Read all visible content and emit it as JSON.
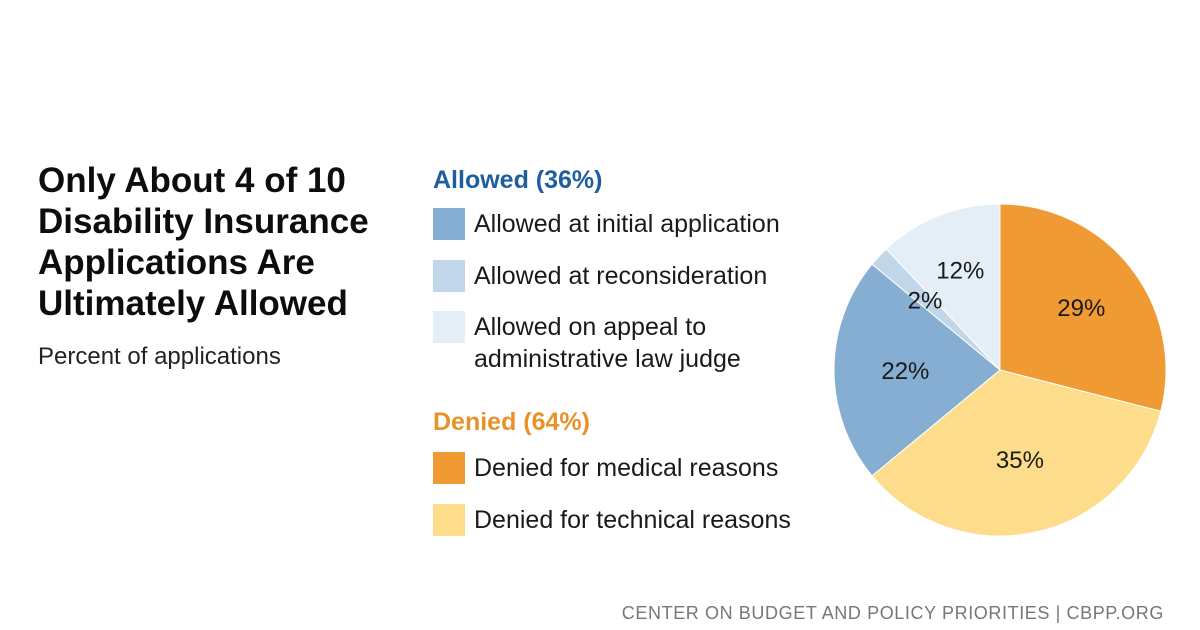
{
  "title_lines": [
    "Only About 4 of 10",
    "Disability Insurance",
    "Applications Are",
    "Ultimately Allowed"
  ],
  "subtitle": "Percent of applications",
  "legend": {
    "allowed_heading": "Allowed (36%)",
    "denied_heading": "Denied (64%)",
    "allowed_color": "#1f5e9e",
    "denied_color": "#e8922b",
    "items": [
      {
        "label_lines": [
          "Allowed at initial application"
        ],
        "color": "#86aed3"
      },
      {
        "label_lines": [
          "Allowed at reconsideration"
        ],
        "color": "#c2d6e9"
      },
      {
        "label_lines": [
          "Allowed on appeal to",
          "administrative law judge"
        ],
        "color": "#e4eef7"
      },
      {
        "label_lines": [
          "Denied for medical reasons"
        ],
        "color": "#ef9a33"
      },
      {
        "label_lines": [
          "Denied for technical reasons"
        ],
        "color": "#fddc8c"
      }
    ]
  },
  "chart_data": {
    "type": "pie",
    "start_angle_deg": 0,
    "direction": "clockwise",
    "slices": [
      {
        "name": "Denied for medical reasons",
        "value": 29,
        "label": "29%",
        "color": "#ef9a33"
      },
      {
        "name": "Denied for technical reasons",
        "value": 35,
        "label": "35%",
        "color": "#fddc8c"
      },
      {
        "name": "Allowed at initial application",
        "value": 22,
        "label": "22%",
        "color": "#86aed3"
      },
      {
        "name": "Allowed at reconsideration",
        "value": 2,
        "label": "2%",
        "color": "#c2d6e9"
      },
      {
        "name": "Allowed on appeal to administrative law judge",
        "value": 12,
        "label": "12%",
        "color": "#e4eef7"
      }
    ]
  },
  "source": "CENTER ON BUDGET AND POLICY PRIORITIES | CBPP.ORG"
}
